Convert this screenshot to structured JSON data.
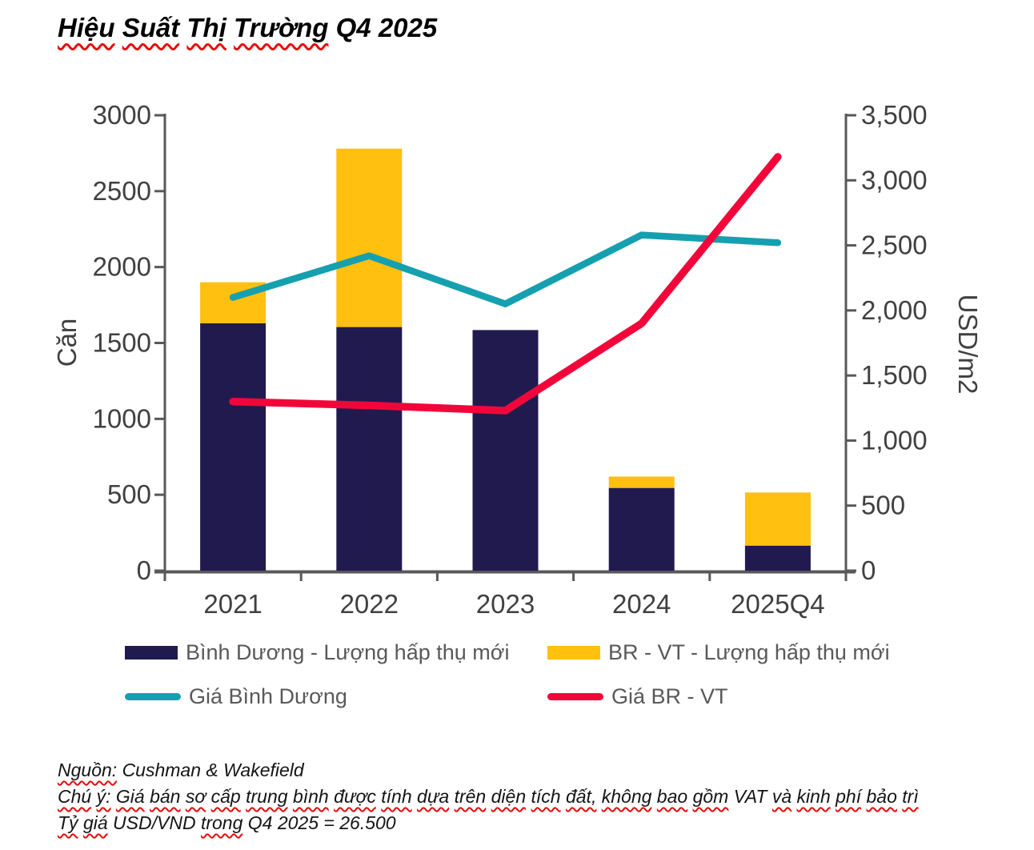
{
  "title": {
    "segments": [
      {
        "t": "Hiệu",
        "w": true
      },
      {
        "t": "Suất",
        "w": true
      },
      {
        "t": "Thị",
        "w": true
      },
      {
        "t": "Trường",
        "w": true
      },
      {
        "t": "Q4 2025",
        "w": false
      }
    ],
    "full_text": "Hiệu Suất Thị Trường Q4 2025"
  },
  "chart_data": {
    "type": "combo",
    "categories": [
      "2021",
      "2022",
      "2023",
      "2024",
      "2025Q4"
    ],
    "series": [
      {
        "name": "Bình Dương - Lượng hấp thụ mới",
        "type": "bar",
        "stack": "absorption",
        "axis": "left",
        "color": "#211A4E",
        "values": [
          1630,
          1605,
          1585,
          545,
          165
        ]
      },
      {
        "name": "BR - VT - Lượng hấp thụ mới",
        "type": "bar",
        "stack": "absorption",
        "axis": "left",
        "color": "#FFC010",
        "values": [
          270,
          1175,
          0,
          75,
          350
        ]
      },
      {
        "name": "Giá Bình Dương",
        "type": "line",
        "axis": "right",
        "color": "#16A0AF",
        "values": [
          2100,
          2420,
          2050,
          2580,
          2520
        ]
      },
      {
        "name": "Giá BR - VT",
        "type": "line",
        "axis": "right",
        "color": "#F2063A",
        "values": [
          1300,
          1270,
          1230,
          1900,
          3180
        ]
      }
    ],
    "left_axis": {
      "label": "Căn",
      "min": 0,
      "max": 3000,
      "step": 500,
      "tick_labels": [
        "0",
        "500",
        "1000",
        "1500",
        "2000",
        "2500",
        "3000"
      ]
    },
    "right_axis": {
      "label": "USD/m2",
      "min": 0,
      "max": 3500,
      "step": 500,
      "tick_labels": [
        "0",
        "500",
        "1,000",
        "1,500",
        "2,000",
        "2,500",
        "3,000",
        "3,500"
      ]
    },
    "grid": false,
    "legend_position": "bottom",
    "axis_color": "#595959",
    "tick_text_color": "#404040"
  },
  "footer": {
    "lines": [
      {
        "segments": [
          {
            "t": "Nguồn:",
            "w": true
          },
          {
            "t": "Cushman & Wakefield",
            "w": false
          }
        ]
      },
      {
        "segments": [
          {
            "t": "Chú",
            "w": true
          },
          {
            "t": "ý:",
            "w": true
          },
          {
            "t": "Giá",
            "w": true
          },
          {
            "t": "bán",
            "w": true
          },
          {
            "t": "sơ",
            "w": true
          },
          {
            "t": "cấp",
            "w": true
          },
          {
            "t": "trung",
            "w": true
          },
          {
            "t": "bình",
            "w": true
          },
          {
            "t": "được",
            "w": true
          },
          {
            "t": "tính",
            "w": true
          },
          {
            "t": "dựa",
            "w": true
          },
          {
            "t": "trên",
            "w": true
          },
          {
            "t": "diện",
            "w": true
          },
          {
            "t": "tích",
            "w": true
          },
          {
            "t": "đất,",
            "w": true
          },
          {
            "t": "không",
            "w": true
          },
          {
            "t": "bao",
            "w": true
          },
          {
            "t": "gồm",
            "w": true
          },
          {
            "t": "VAT",
            "w": false
          },
          {
            "t": "và",
            "w": true
          },
          {
            "t": "kinh",
            "w": true
          },
          {
            "t": "phí",
            "w": true
          },
          {
            "t": "bảo",
            "w": true
          },
          {
            "t": "trì",
            "w": true
          }
        ]
      },
      {
        "segments": [
          {
            "t": "Tỷ",
            "w": true
          },
          {
            "t": "giá",
            "w": true
          },
          {
            "t": "USD/VND",
            "w": false
          },
          {
            "t": "trong",
            "w": true
          },
          {
            "t": "Q4 2025 = 26.500",
            "w": false
          }
        ]
      }
    ]
  }
}
